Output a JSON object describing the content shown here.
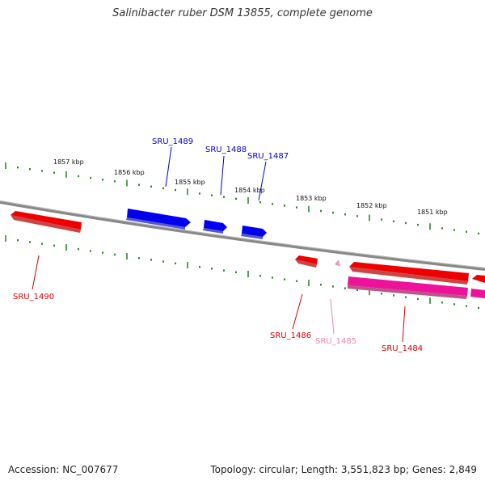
{
  "header": {
    "title": "Salinibacter ruber DSM 13855, complete genome"
  },
  "footer": {
    "accession": "Accession: NC_007677",
    "stats": "Topology: circular; Length: 3,551,823 bp; Genes: 2,849"
  },
  "colors": {
    "backbone": "#888888",
    "ticks": "#2a8a2a",
    "forward_gene": "#0000ee",
    "reverse_gene": "#ee0000",
    "rna_gene": "#ee1199",
    "pseudogene": "#ee99bb"
  },
  "scale": {
    "unit": "kbp",
    "labels": [
      "1857 kbp",
      "1856 kbp",
      "1855 kbp",
      "1854 kbp",
      "1853 kbp",
      "1852 kbp",
      "1851 kbp"
    ]
  },
  "genes": [
    {
      "id": "SRU_1489",
      "strand": "forward"
    },
    {
      "id": "SRU_1488",
      "strand": "forward"
    },
    {
      "id": "SRU_1487",
      "strand": "forward"
    },
    {
      "id": "SRU_1490",
      "strand": "reverse"
    },
    {
      "id": "SRU_1486",
      "strand": "reverse"
    },
    {
      "id": "SRU_1485",
      "strand": "reverse"
    },
    {
      "id": "SRU_1484",
      "strand": "reverse"
    }
  ]
}
